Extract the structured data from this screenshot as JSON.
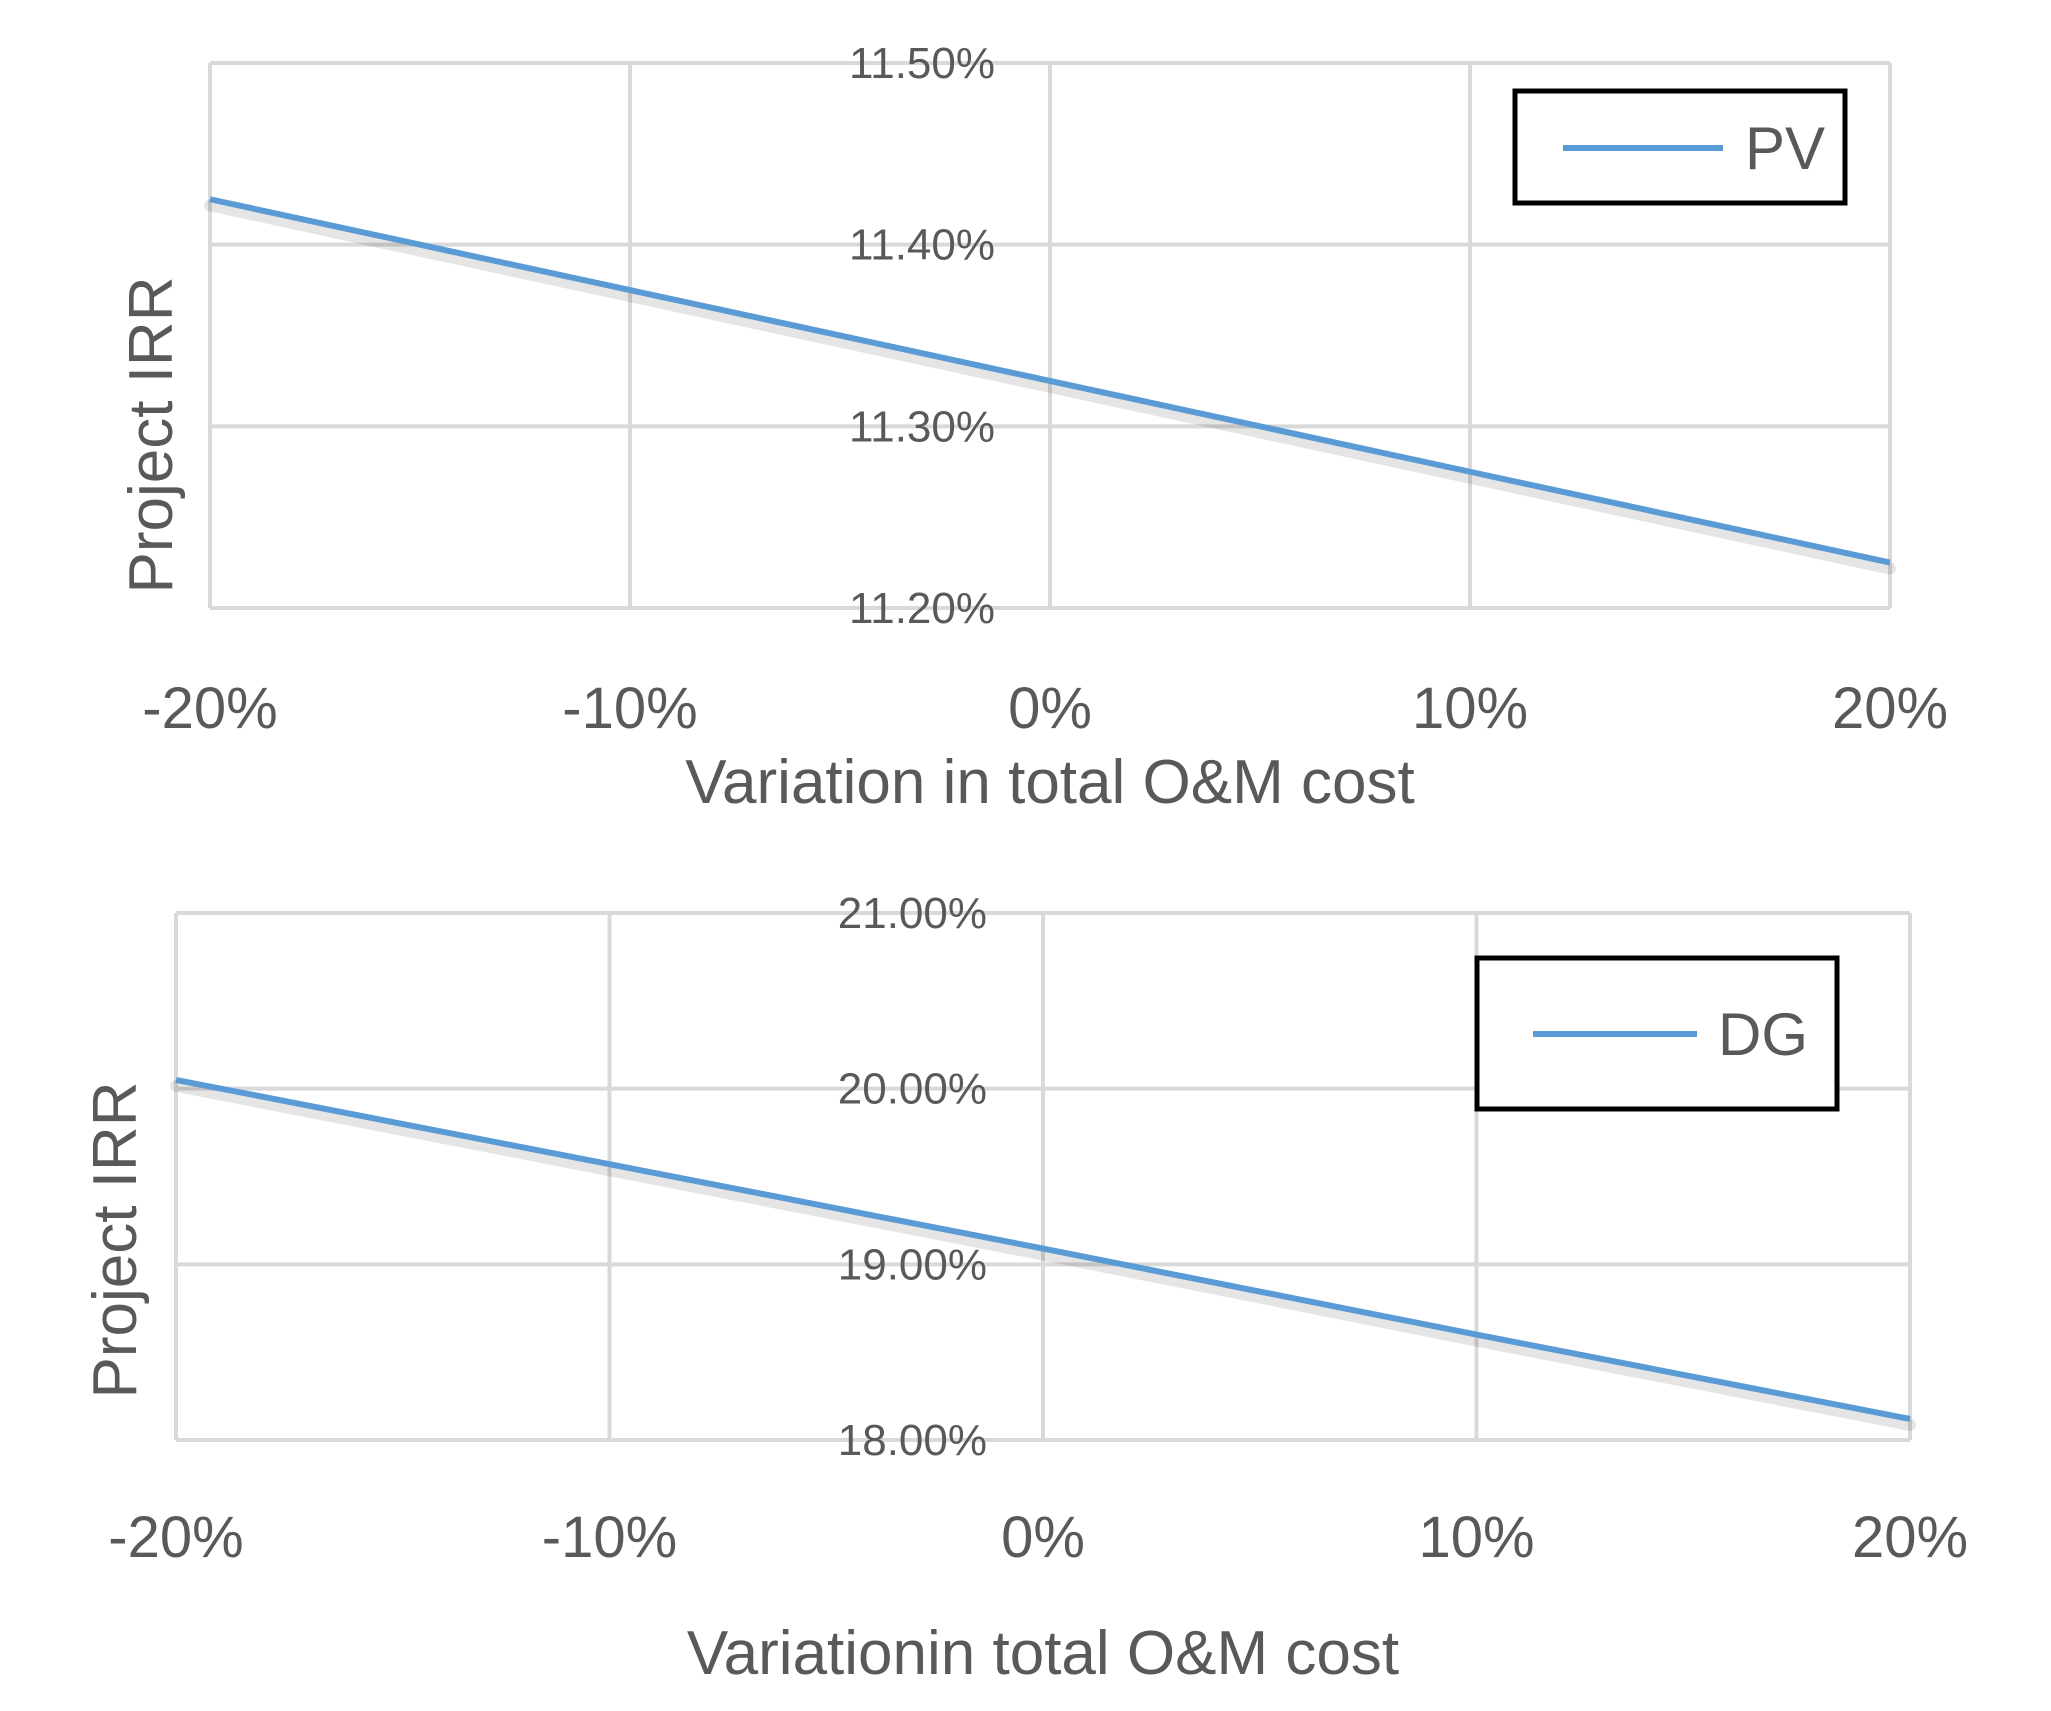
{
  "chart_data": [
    {
      "type": "line",
      "xlabel": "Variation in total O&M cost",
      "ylabel": "Project IRR",
      "x": [
        "-20%",
        "-10%",
        "0%",
        "10%",
        "20%"
      ],
      "x_values": [
        -20,
        -10,
        0,
        10,
        20
      ],
      "yticks": [
        "11.20%",
        "11.30%",
        "11.40%",
        "11.50%"
      ],
      "ylim": [
        11.2,
        11.5
      ],
      "grid": true,
      "legend_position": "top-right",
      "series": [
        {
          "name": "PV",
          "color": "#5B9BD5",
          "values": [
            11.425,
            11.375,
            11.325,
            11.275,
            11.225
          ]
        }
      ]
    },
    {
      "type": "line",
      "xlabel": "Variationin total O&M cost",
      "ylabel": "Project IRR",
      "x": [
        "-20%",
        "-10%",
        "0%",
        "10%",
        "20%"
      ],
      "x_values": [
        -20,
        -10,
        0,
        10,
        20
      ],
      "yticks": [
        "18.00%",
        "19.00%",
        "20.00%",
        "21.00%"
      ],
      "ylim": [
        18.0,
        21.0
      ],
      "grid": true,
      "legend_position": "top-right",
      "series": [
        {
          "name": "DG",
          "color": "#5B9BD5",
          "values": [
            20.05,
            19.57,
            19.09,
            18.6,
            18.12
          ]
        }
      ]
    }
  ]
}
